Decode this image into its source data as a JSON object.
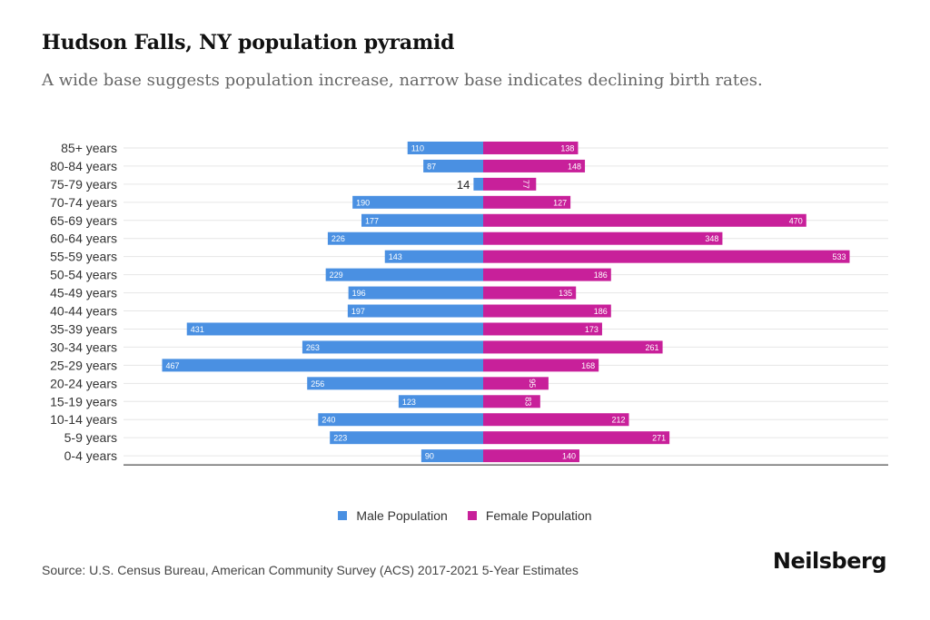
{
  "header": {
    "title": "Hudson Falls, NY population pyramid",
    "subtitle": "A wide base suggests population increase, narrow base indicates declining birth rates."
  },
  "chart_data": {
    "type": "bar",
    "orientation": "horizontal-diverging",
    "title": "Hudson Falls, NY population pyramid",
    "categories": [
      "85+ years",
      "80-84 years",
      "75-79 years",
      "70-74 years",
      "65-69 years",
      "60-64 years",
      "55-59 years",
      "50-54 years",
      "45-49 years",
      "40-44 years",
      "35-39 years",
      "30-34 years",
      "25-29 years",
      "20-24 years",
      "15-19 years",
      "10-14 years",
      "5-9 years",
      "0-4 years"
    ],
    "series": [
      {
        "name": "Male Population",
        "color": "#4a90e2",
        "values": [
          110,
          87,
          14,
          190,
          177,
          226,
          143,
          229,
          196,
          197,
          431,
          263,
          467,
          256,
          123,
          240,
          223,
          90
        ]
      },
      {
        "name": "Female Population",
        "color": "#c8209a",
        "values": [
          138,
          148,
          77,
          127,
          470,
          348,
          533,
          186,
          135,
          186,
          173,
          261,
          168,
          95,
          83,
          212,
          271,
          140
        ]
      }
    ],
    "legend_position": "bottom-center",
    "grid": true
  },
  "legend": {
    "male_label": "Male Population",
    "female_label": "Female Population"
  },
  "footer": {
    "source": "Source: U.S. Census Bureau, American Community Survey (ACS) 2017-2021 5-Year Estimates",
    "brand": "Neilsberg"
  }
}
